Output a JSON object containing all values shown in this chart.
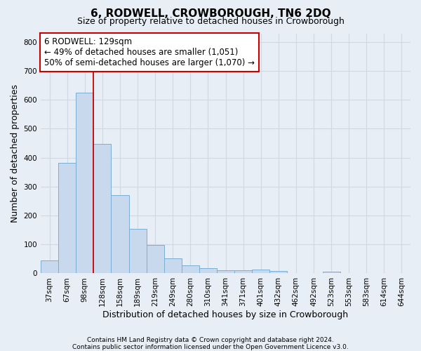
{
  "title": "6, RODWELL, CROWBOROUGH, TN6 2DQ",
  "subtitle": "Size of property relative to detached houses in Crowborough",
  "xlabel": "Distribution of detached houses by size in Crowborough",
  "ylabel": "Number of detached properties",
  "footnote1": "Contains HM Land Registry data © Crown copyright and database right 2024.",
  "footnote2": "Contains public sector information licensed under the Open Government Licence v3.0.",
  "categories": [
    "37sqm",
    "67sqm",
    "98sqm",
    "128sqm",
    "158sqm",
    "189sqm",
    "219sqm",
    "249sqm",
    "280sqm",
    "310sqm",
    "341sqm",
    "371sqm",
    "401sqm",
    "432sqm",
    "462sqm",
    "492sqm",
    "523sqm",
    "553sqm",
    "583sqm",
    "614sqm",
    "644sqm"
  ],
  "values": [
    46,
    383,
    625,
    447,
    270,
    155,
    99,
    53,
    29,
    18,
    11,
    11,
    14,
    8,
    0,
    0,
    7,
    0,
    0,
    0,
    0
  ],
  "bar_color": "#c8d9ed",
  "bar_edge_color": "#7aaed4",
  "redline_x": 2.5,
  "ylim": [
    0,
    830
  ],
  "yticks": [
    0,
    100,
    200,
    300,
    400,
    500,
    600,
    700,
    800
  ],
  "annotation_line1": "6 RODWELL: 129sqm",
  "annotation_line2": "← 49% of detached houses are smaller (1,051)",
  "annotation_line3": "50% of semi-detached houses are larger (1,070) →",
  "annotation_box_facecolor": "#ffffff",
  "annotation_box_edgecolor": "#cc0000",
  "bg_color": "#e8eef5",
  "plot_bg_color": "#e8eef5",
  "grid_color": "#d0d8e4",
  "title_fontsize": 11,
  "subtitle_fontsize": 9,
  "tick_fontsize": 7.5,
  "ylabel_fontsize": 9,
  "xlabel_fontsize": 9,
  "annotation_fontsize": 8.5,
  "footnote_fontsize": 6.5
}
